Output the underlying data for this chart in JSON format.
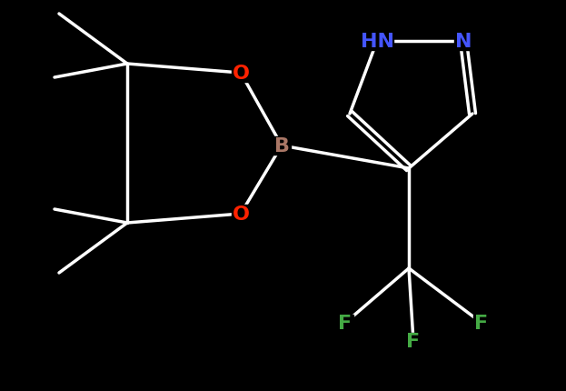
{
  "background_color": "#000000",
  "bond_color": "#ffffff",
  "bond_lw": 2.5,
  "fig_width": 6.23,
  "fig_height": 4.31,
  "dpi": 100,
  "colors": {
    "N": "#4455ff",
    "O": "#ff2200",
    "B": "#aa7766",
    "F": "#44aa44",
    "C": "#ffffff"
  },
  "font_size": 16
}
